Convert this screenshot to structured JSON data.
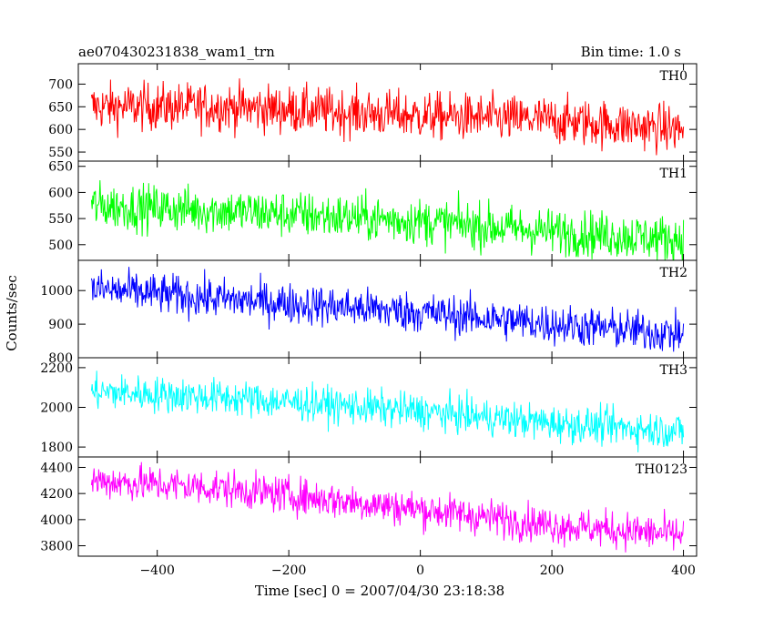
{
  "header": {
    "title": "ae070430231838_wam1_trn",
    "bin_time": "Bin time: 1.0 s"
  },
  "chart_data": {
    "type": "line",
    "xlabel": "Time [sec] 0 = 2007/04/30 23:18:38",
    "ylabel": "Counts/sec",
    "xlim": [
      -520,
      420
    ],
    "x_range": [
      -500,
      400
    ],
    "x_ticks": [
      -400,
      -200,
      0,
      200,
      400
    ],
    "x_tick_labels": [
      "−400",
      "−200",
      "0",
      "200",
      "400"
    ],
    "panels": [
      {
        "name": "TH0",
        "color": "#ff0000",
        "ylim": [
          530,
          745
        ],
        "y_ticks": [
          550,
          600,
          650,
          700
        ],
        "trend": [
          [
            -500,
            650
          ],
          [
            -300,
            650
          ],
          [
            0,
            630
          ],
          [
            200,
            620
          ],
          [
            400,
            600
          ]
        ],
        "noise": 26
      },
      {
        "name": "TH1",
        "color": "#00ff00",
        "ylim": [
          470,
          660
        ],
        "y_ticks": [
          500,
          550,
          600,
          650
        ],
        "trend": [
          [
            -500,
            575
          ],
          [
            -300,
            565
          ],
          [
            0,
            545
          ],
          [
            200,
            525
          ],
          [
            400,
            510
          ]
        ],
        "noise": 22
      },
      {
        "name": "TH2",
        "color": "#0000ff",
        "ylim": [
          800,
          1090
        ],
        "y_ticks": [
          800,
          900,
          1000
        ],
        "trend": [
          [
            -500,
            1005
          ],
          [
            -300,
            975
          ],
          [
            0,
            935
          ],
          [
            200,
            900
          ],
          [
            400,
            870
          ]
        ],
        "noise": 30
      },
      {
        "name": "TH3",
        "color": "#00ffff",
        "ylim": [
          1750,
          2250
        ],
        "y_ticks": [
          1800,
          2000,
          2200
        ],
        "trend": [
          [
            -500,
            2080
          ],
          [
            -300,
            2050
          ],
          [
            0,
            1980
          ],
          [
            200,
            1920
          ],
          [
            400,
            1880
          ]
        ],
        "noise": 45
      },
      {
        "name": "TH0123",
        "color": "#ff00ff",
        "ylim": [
          3720,
          4480
        ],
        "y_ticks": [
          3800,
          4000,
          4200,
          4400
        ],
        "trend": [
          [
            -500,
            4300
          ],
          [
            -300,
            4240
          ],
          [
            0,
            4080
          ],
          [
            200,
            3960
          ],
          [
            400,
            3880
          ]
        ],
        "noise": 70
      }
    ]
  }
}
